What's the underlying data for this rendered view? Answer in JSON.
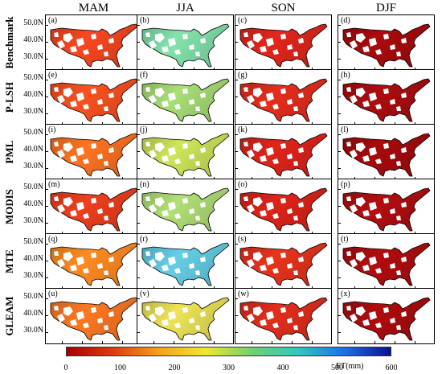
{
  "columns": [
    "MAM",
    "JJA",
    "SON",
    "DJF"
  ],
  "rows": [
    {
      "name": "Benchmark",
      "labels": [
        "(a)",
        "(b)",
        "(c)",
        "(d)"
      ],
      "colors": [
        "#e8421e",
        "#7ad3a0",
        "#d4231a",
        "#9e0a0c"
      ]
    },
    {
      "name": "P-LSH",
      "labels": [
        "(e)",
        "(f)",
        "(g)",
        "(h)"
      ],
      "colors": [
        "#ea4c1d",
        "#9ccf6e",
        "#d62a1b",
        "#a00c0e"
      ]
    },
    {
      "name": "PML",
      "labels": [
        "(i)",
        "(j)",
        "(k)",
        "(l)"
      ],
      "colors": [
        "#ee6b1f",
        "#bfd653",
        "#d12118",
        "#9c090c"
      ]
    },
    {
      "name": "MODIS",
      "labels": [
        "(m)",
        "(n)",
        "(o)",
        "(p)"
      ],
      "colors": [
        "#df3a1b",
        "#a5d06e",
        "#d02017",
        "#a60d0f"
      ]
    },
    {
      "name": "MTE",
      "labels": [
        "(q)",
        "(r)",
        "(s)",
        "(t)"
      ],
      "colors": [
        "#f0821f",
        "#5ec0d6",
        "#d8301a",
        "#a50c0e"
      ]
    },
    {
      "name": "GLEAM",
      "labels": [
        "(u)",
        "(v)",
        "(w)",
        "(x)"
      ],
      "colors": [
        "#ee7020",
        "#dcd450",
        "#d42a1a",
        "#a20b0d"
      ]
    }
  ],
  "latitudes": [
    "50.0N",
    "40.0N",
    "30.0N"
  ],
  "colorbar": {
    "ticks": [
      "0",
      "100",
      "200",
      "300",
      "400",
      "500",
      "600"
    ],
    "min": 0,
    "max": 600,
    "unit": "ET(mm)",
    "stops": [
      "#a50000",
      "#e03a10",
      "#f5a21c",
      "#f0e830",
      "#70d070",
      "#30c8c0",
      "#1e6ee8",
      "#0a1090"
    ]
  }
}
